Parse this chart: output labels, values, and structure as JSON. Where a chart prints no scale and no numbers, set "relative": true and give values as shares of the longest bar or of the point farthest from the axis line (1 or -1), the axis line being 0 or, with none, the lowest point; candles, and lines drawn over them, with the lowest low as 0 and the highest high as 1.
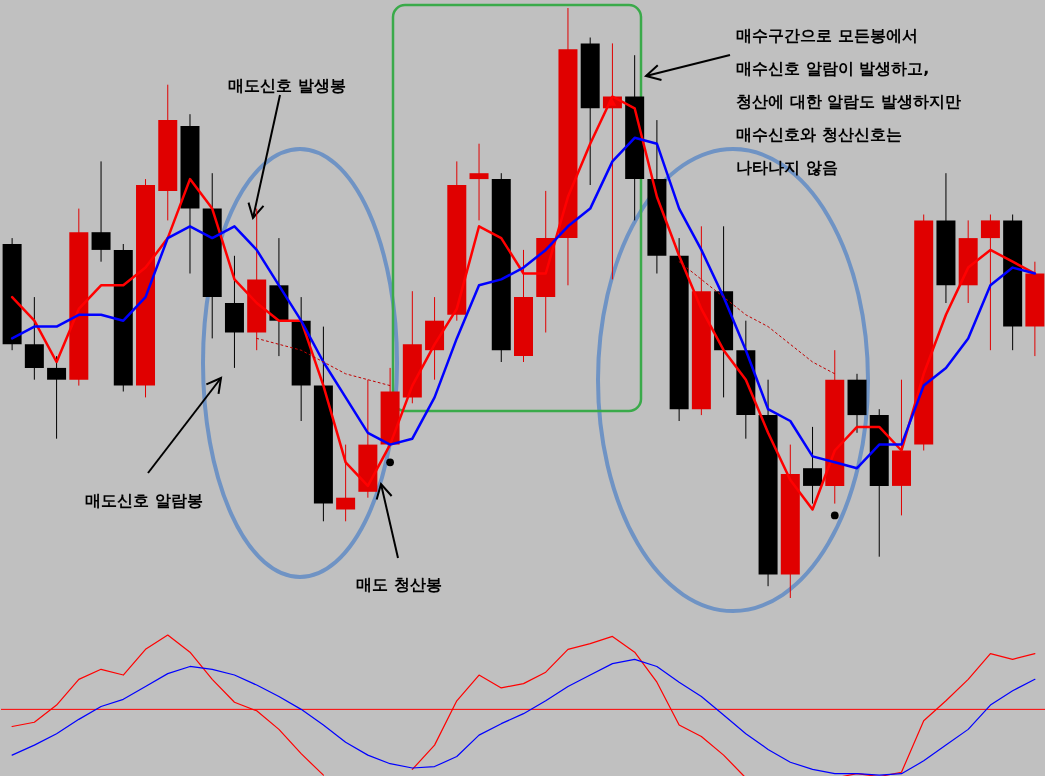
{
  "chart_data": [
    {
      "type": "candlestick",
      "relative": true,
      "categories": [
        null,
        null,
        null,
        null,
        null,
        null,
        null,
        null,
        null,
        null,
        null,
        null,
        null,
        null,
        null,
        null,
        null,
        null,
        null,
        null,
        null,
        null,
        null,
        null,
        null,
        null,
        null,
        null,
        null,
        null,
        null,
        null,
        null,
        null,
        null,
        null,
        null,
        null,
        null,
        null,
        null,
        null,
        null,
        null,
        null,
        null,
        null
      ],
      "ohlc": [
        [
          0.6,
          0.61,
          0.42,
          0.43
        ],
        [
          0.43,
          0.51,
          0.37,
          0.39
        ],
        [
          0.39,
          0.41,
          0.27,
          0.37
        ],
        [
          0.37,
          0.66,
          0.36,
          0.62
        ],
        [
          0.62,
          0.74,
          0.57,
          0.59
        ],
        [
          0.59,
          0.6,
          0.35,
          0.36
        ],
        [
          0.36,
          0.71,
          0.34,
          0.7
        ],
        [
          0.69,
          0.87,
          0.64,
          0.81
        ],
        [
          0.8,
          0.82,
          0.55,
          0.66
        ],
        [
          0.66,
          0.72,
          0.44,
          0.51
        ],
        [
          0.5,
          0.58,
          0.39,
          0.45
        ],
        [
          0.45,
          0.66,
          0.42,
          0.54
        ],
        [
          0.53,
          0.61,
          0.41,
          0.47
        ],
        [
          0.47,
          0.51,
          0.3,
          0.36
        ],
        [
          0.36,
          0.46,
          0.13,
          0.16
        ],
        [
          0.15,
          0.26,
          0.13,
          0.17
        ],
        [
          0.18,
          0.37,
          0.17,
          0.26
        ],
        [
          0.26,
          0.39,
          0.26,
          0.35
        ],
        [
          0.34,
          0.52,
          0.33,
          0.43
        ],
        [
          0.42,
          0.51,
          0.37,
          0.47
        ],
        [
          0.48,
          0.74,
          0.47,
          0.7
        ],
        [
          0.71,
          0.77,
          0.64,
          0.72
        ],
        [
          0.71,
          0.72,
          0.4,
          0.42
        ],
        [
          0.41,
          0.59,
          0.4,
          0.51
        ],
        [
          0.51,
          0.69,
          0.45,
          0.61
        ],
        [
          0.61,
          1.0,
          0.53,
          0.93
        ],
        [
          0.94,
          0.95,
          0.7,
          0.83
        ],
        [
          0.83,
          0.94,
          0.54,
          0.85
        ],
        [
          0.85,
          0.92,
          0.64,
          0.71
        ],
        [
          0.71,
          0.81,
          0.55,
          0.58
        ],
        [
          0.58,
          0.61,
          0.3,
          0.32
        ],
        [
          0.32,
          0.63,
          0.31,
          0.52
        ],
        [
          0.52,
          0.63,
          0.34,
          0.42
        ],
        [
          0.42,
          0.47,
          0.27,
          0.31
        ],
        [
          0.31,
          0.37,
          0.02,
          0.04
        ],
        [
          0.04,
          0.26,
          0.0,
          0.21
        ],
        [
          0.22,
          0.29,
          0.16,
          0.19
        ],
        [
          0.19,
          0.42,
          0.16,
          0.37
        ],
        [
          0.37,
          0.38,
          0.28,
          0.31
        ],
        [
          0.31,
          0.32,
          0.07,
          0.19
        ],
        [
          0.19,
          0.37,
          0.14,
          0.25
        ],
        [
          0.26,
          0.65,
          0.25,
          0.64
        ],
        [
          0.64,
          0.72,
          0.5,
          0.53
        ],
        [
          0.53,
          0.64,
          0.5,
          0.61
        ],
        [
          0.61,
          0.65,
          0.42,
          0.64
        ],
        [
          0.64,
          0.65,
          0.42,
          0.46
        ],
        [
          0.46,
          0.57,
          0.41,
          0.55
        ]
      ],
      "colors": [
        "#000000",
        "#000000",
        "#000000",
        "#e00000",
        "#000000",
        "#000000",
        "#e00000",
        "#e00000",
        "#000000",
        "#000000",
        "#000000",
        "#e00000",
        "#000000",
        "#000000",
        "#000000",
        "#e00000",
        "#e00000",
        "#e00000",
        "#e00000",
        "#e00000",
        "#e00000",
        "#e00000",
        "#000000",
        "#e00000",
        "#e00000",
        "#e00000",
        "#000000",
        "#e00000",
        "#000000",
        "#000000",
        "#000000",
        "#e00000",
        "#000000",
        "#000000",
        "#000000",
        "#e00000",
        "#000000",
        "#e00000",
        "#000000",
        "#000000",
        "#e00000",
        "#e00000",
        "#000000",
        "#e00000",
        "#e00000",
        "#000000",
        "#e00000"
      ],
      "series": [
        {
          "type": "line",
          "color": "#ff0000",
          "line_style": "solid",
          "values": [
            0.51,
            0.47,
            0.4,
            0.49,
            0.53,
            0.53,
            0.56,
            0.61,
            0.71,
            0.66,
            0.54,
            0.5,
            0.47,
            0.47,
            0.36,
            0.23,
            0.19,
            0.26,
            0.36,
            0.43,
            0.49,
            0.63,
            0.61,
            0.55,
            0.55,
            0.68,
            0.77,
            0.85,
            0.83,
            0.68,
            0.58,
            0.49,
            0.42,
            0.37,
            0.28,
            0.2,
            0.15,
            0.25,
            0.29,
            0.29,
            0.25,
            0.38,
            0.48,
            0.56,
            0.59,
            0.57,
            0.55
          ]
        },
        {
          "type": "line",
          "color": "#0000ff",
          "line_style": "solid",
          "values": [
            0.44,
            0.46,
            0.46,
            0.48,
            0.48,
            0.47,
            0.51,
            0.61,
            0.63,
            0.61,
            0.63,
            0.59,
            0.53,
            0.47,
            0.4,
            0.34,
            0.28,
            0.26,
            0.27,
            0.34,
            0.44,
            0.53,
            0.54,
            0.56,
            0.59,
            0.63,
            0.66,
            0.74,
            0.78,
            0.77,
            0.66,
            0.59,
            0.51,
            0.42,
            0.32,
            0.3,
            0.24,
            0.23,
            0.22,
            0.26,
            0.26,
            0.36,
            0.39,
            0.44,
            0.53,
            0.56,
            0.55
          ]
        },
        {
          "type": "line",
          "color": "#c00000",
          "line_style": "dotted",
          "values": [
            null,
            null,
            null,
            null,
            null,
            null,
            null,
            null,
            null,
            null,
            null,
            0.44,
            0.43,
            0.42,
            0.4,
            0.38,
            0.37,
            0.36,
            null,
            null,
            null,
            null,
            null,
            null,
            null,
            null,
            null,
            null,
            null,
            null,
            null,
            null,
            null,
            null,
            null,
            null,
            null,
            null,
            null,
            null,
            null,
            null,
            null,
            null,
            null,
            null,
            null
          ]
        },
        {
          "type": "line",
          "color": "#c00000",
          "line_style": "dotted",
          "values": [
            null,
            null,
            null,
            null,
            null,
            null,
            null,
            null,
            null,
            null,
            null,
            null,
            null,
            null,
            null,
            null,
            null,
            null,
            null,
            null,
            null,
            null,
            null,
            null,
            null,
            null,
            null,
            null,
            null,
            null,
            0.57,
            0.54,
            0.51,
            0.48,
            0.46,
            0.43,
            0.4,
            0.38,
            null,
            null,
            null,
            null,
            null,
            null,
            null,
            null,
            null
          ]
        },
        {
          "type": "scatter",
          "color": "#000000",
          "marker": "circle",
          "values": [
            null,
            null,
            null,
            null,
            null,
            null,
            null,
            null,
            null,
            null,
            null,
            null,
            null,
            null,
            null,
            null,
            null,
            0.23,
            null,
            null,
            null,
            null,
            null,
            null,
            null,
            null,
            null,
            null,
            null,
            null,
            null,
            null,
            null,
            null,
            null,
            null,
            null,
            0.14,
            null,
            null,
            null,
            null,
            null,
            null,
            null,
            null,
            null
          ]
        },
        {
          "type": "scatter",
          "color": "#ff0000",
          "marker": "triangle",
          "values": [
            null,
            null,
            null,
            null,
            null,
            null,
            null,
            null,
            null,
            null,
            null,
            null,
            null,
            null,
            null,
            null,
            null,
            null,
            null,
            null,
            null,
            null,
            null,
            null,
            null,
            null,
            null,
            0.84,
            null,
            null,
            null,
            null,
            null,
            null,
            null,
            null,
            null,
            null,
            null,
            null,
            null,
            null,
            null,
            null,
            null,
            null,
            null
          ]
        }
      ],
      "annotations": [
        "매도신호 발생봉",
        "매도신호 알람봉",
        "매도 청산봉",
        "매수구간으로 모든봉에서\n매수신호 알람이 발생하고,\n청산에 대한 알람도 발생하지만\n매수신호와 청산신호는\n나타나지 않음"
      ]
    },
    {
      "type": "line",
      "relative": true,
      "categories": [
        null,
        null,
        null,
        null,
        null,
        null,
        null,
        null,
        null,
        null,
        null,
        null,
        null,
        null,
        null,
        null,
        null,
        null,
        null,
        null,
        null,
        null,
        null,
        null,
        null,
        null,
        null,
        null,
        null,
        null,
        null,
        null,
        null,
        null,
        null,
        null,
        null,
        null,
        null,
        null,
        null,
        null,
        null,
        null,
        null,
        null,
        null
      ],
      "series": [
        {
          "color": "#ff0000",
          "values": [
            0.36,
            0.39,
            0.51,
            0.69,
            0.76,
            0.72,
            0.9,
            1.0,
            0.88,
            0.69,
            0.53,
            0.47,
            0.34,
            0.17,
            0.02,
            null,
            null,
            null,
            0.06,
            0.23,
            0.54,
            0.72,
            0.63,
            0.66,
            0.74,
            0.9,
            0.94,
            0.99,
            0.88,
            0.67,
            0.37,
            0.29,
            0.16,
            0,
            null,
            null,
            null,
            0,
            0.03,
            0.01,
            0.04,
            0.4,
            0.54,
            0.69,
            0.87,
            0.83,
            0.87
          ]
        },
        {
          "color": "#0000ff",
          "values": [
            0.16,
            0.23,
            0.31,
            0.41,
            0.5,
            0.55,
            0.64,
            0.73,
            0.78,
            0.76,
            0.72,
            0.65,
            0.57,
            0.48,
            0.37,
            0.25,
            0.16,
            0.1,
            0.07,
            0.08,
            0.15,
            0.3,
            0.38,
            0.45,
            0.54,
            0.64,
            0.72,
            0.8,
            0.83,
            0.78,
            0.67,
            0.57,
            0.44,
            0.31,
            0.2,
            0.11,
            0.06,
            0.03,
            0.03,
            0.02,
            0.03,
            0.12,
            0.23,
            0.34,
            0.51,
            0.61,
            0.69
          ]
        }
      ],
      "ref_lines": [
        {
          "axis": "y",
          "value": 0.48,
          "color": "#ff0000"
        }
      ]
    }
  ]
}
